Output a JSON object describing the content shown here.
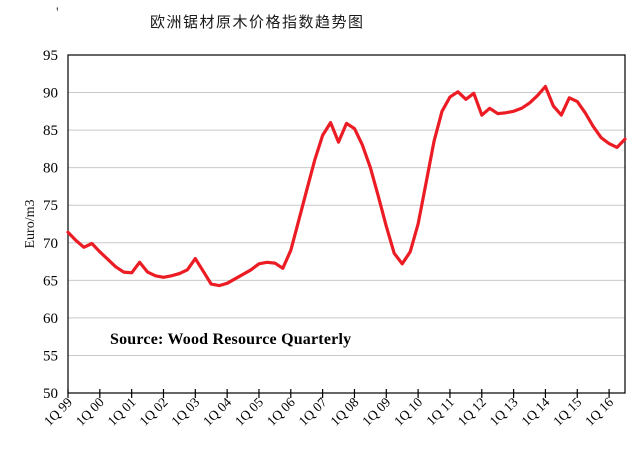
{
  "page": {
    "background": "#ffffff",
    "stray_mark": "'"
  },
  "chart_data": {
    "type": "line",
    "title": "欧洲锯材原木价格指数趋势图",
    "ylabel": "Euro/m3",
    "xlabel": "",
    "ylim": [
      50,
      95
    ],
    "yticks": [
      50,
      55,
      60,
      65,
      70,
      75,
      80,
      85,
      90,
      95
    ],
    "grid": "horizontal-only",
    "legend": "none",
    "annotation": "Source: Wood Resource Quarterly",
    "line_color": "#EC1C24",
    "grid_color": "#c9c9c9",
    "axis_color": "#000000",
    "x_tick_labels": [
      "1Q 99",
      "1Q 00",
      "1Q 01",
      "1Q 02",
      "1Q 03",
      "1Q 04",
      "1Q 05",
      "1Q 06",
      "1Q 07",
      "1Q 08",
      "1Q 09",
      "1Q 10",
      "1Q 11",
      "1Q 12",
      "1Q 13",
      "1Q 14",
      "1Q 15",
      "1Q 16"
    ],
    "x_tick_interval_points": 4,
    "series": [
      {
        "name": "欧洲锯材原木价格指数",
        "values": [
          71.4,
          70.3,
          69.4,
          69.9,
          68.8,
          67.8,
          66.8,
          66.1,
          66.0,
          67.4,
          66.1,
          65.6,
          65.4,
          65.6,
          65.9,
          66.4,
          67.9,
          66.2,
          64.5,
          64.3,
          64.6,
          65.2,
          65.8,
          66.4,
          67.2,
          67.4,
          67.3,
          66.6,
          69.0,
          73.0,
          77.0,
          81.0,
          84.3,
          86.0,
          83.4,
          85.9,
          85.2,
          83.0,
          80.0,
          76.2,
          72.2,
          68.6,
          67.2,
          68.8,
          72.5,
          78.0,
          83.5,
          87.5,
          89.4,
          90.1,
          89.1,
          89.9,
          87.0,
          87.9,
          87.2,
          87.3,
          87.5,
          87.9,
          88.6,
          89.6,
          90.8,
          88.2,
          87.0,
          89.3,
          88.8,
          87.3,
          85.5,
          84.0,
          83.2,
          82.7,
          83.8
        ]
      }
    ]
  }
}
